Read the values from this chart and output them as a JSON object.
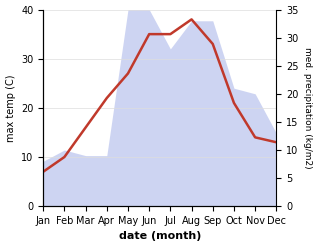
{
  "months": [
    "Jan",
    "Feb",
    "Mar",
    "Apr",
    "May",
    "Jun",
    "Jul",
    "Aug",
    "Sep",
    "Oct",
    "Nov",
    "Dec"
  ],
  "temperature": [
    7,
    10,
    16,
    22,
    27,
    35,
    35,
    38,
    33,
    21,
    14,
    13
  ],
  "precipitation": [
    8,
    10,
    9,
    9,
    35,
    35,
    28,
    33,
    33,
    21,
    20,
    13
  ],
  "temp_color": "#c0392b",
  "precip_color_fill": "#c5cdf0",
  "left_ylabel": "max temp (C)",
  "right_ylabel": "med. precipitation (kg/m2)",
  "xlabel": "date (month)",
  "ylim_left": [
    0,
    40
  ],
  "ylim_right": [
    0,
    35
  ],
  "yticks_left": [
    0,
    10,
    20,
    30,
    40
  ],
  "yticks_right": [
    0,
    5,
    10,
    15,
    20,
    25,
    30,
    35
  ],
  "bg_color": "#ffffff",
  "grid_color": "#dddddd",
  "temp_linewidth": 1.8
}
